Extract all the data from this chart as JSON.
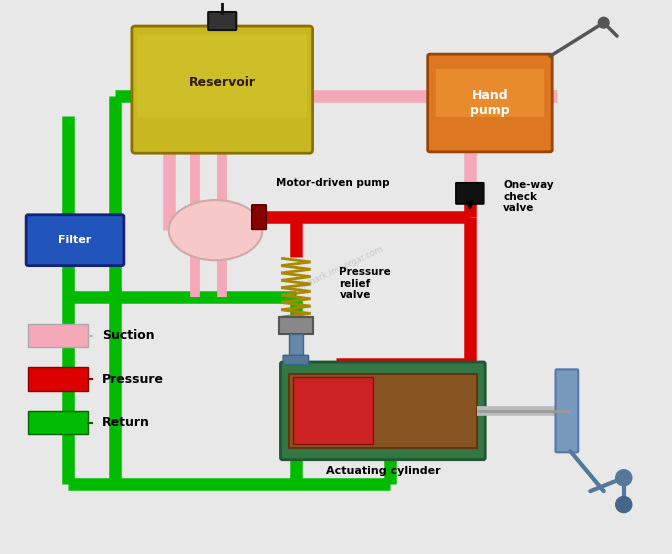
{
  "bg_color": "#e8e8e8",
  "suction_color": "#f4a8b8",
  "pressure_color": "#dd0000",
  "return_color": "#00bb00",
  "reservoir_color_top": "#c8b400",
  "reservoir_color": "#b8a000",
  "hand_pump_color": "#cc6600",
  "filter_color": "#2255bb",
  "motor_pump_label": "Motor-driven pump",
  "pressure_relief_label": "Pressure\nrelief\nvalve",
  "one_way_label": "One-way\ncheck\nvalve",
  "actuating_label": "Actuating cylinder",
  "reservoir_label": "Reservoir",
  "hand_pump_label": "Hand\npump",
  "filter_label": "Filter",
  "legend_suction": "Suction",
  "legend_pressure": "Pressure",
  "legend_return": "Return",
  "lw_pipe": 9
}
